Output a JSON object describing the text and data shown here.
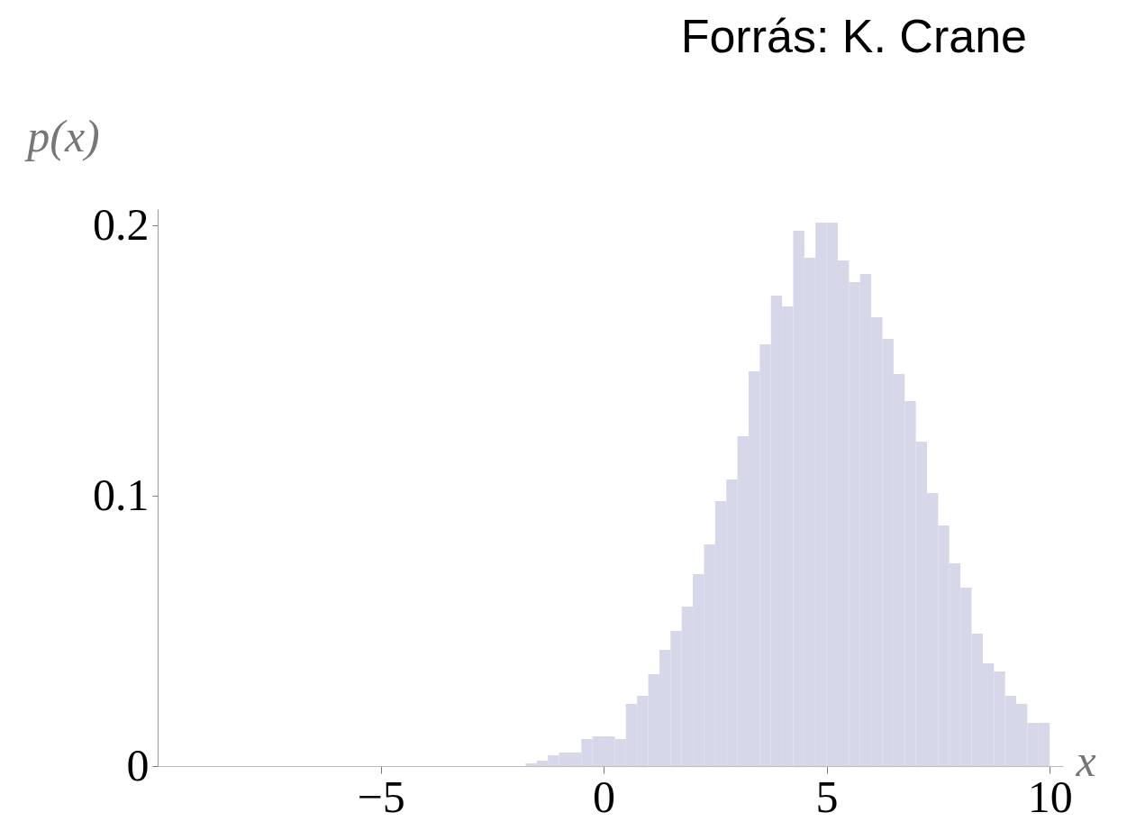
{
  "chart_data": {
    "type": "histogram",
    "xlabel": "x",
    "ylabel": "p(x)",
    "annotations": [
      "Forrás: K. Crane"
    ],
    "bins": [
      -1.75,
      -1.5,
      -1.25,
      -1,
      -0.75,
      -0.5,
      -0.25,
      0,
      0.25,
      0.5,
      0.75,
      1,
      1.25,
      1.5,
      1.75,
      2,
      2.25,
      2.5,
      2.75,
      3,
      3.25,
      3.5,
      3.75,
      4,
      4.25,
      4.5,
      4.75,
      5,
      5.25,
      5.5,
      5.75,
      6,
      6.25,
      6.5,
      6.75,
      7,
      7.25,
      7.5,
      7.75,
      8,
      8.25,
      8.5,
      8.75,
      9,
      9.25,
      9.5,
      9.75,
      10
    ],
    "values": [
      0.001,
      0.002,
      0.004,
      0.005,
      0.005,
      0.01,
      0.011,
      0.011,
      0.01,
      0.023,
      0.026,
      0.034,
      0.043,
      0.05,
      0.059,
      0.071,
      0.082,
      0.098,
      0.106,
      0.122,
      0.146,
      0.156,
      0.174,
      0.17,
      0.198,
      0.188,
      0.201,
      0.201,
      0.187,
      0.179,
      0.182,
      0.166,
      0.158,
      0.145,
      0.135,
      0.12,
      0.101,
      0.089,
      0.075,
      0.066,
      0.049,
      0.038,
      0.035,
      0.026,
      0.023,
      0.016,
      0.016
    ],
    "color": "#d6d7e8",
    "xlim": [
      -10,
      10.3
    ],
    "xticks": [
      -5,
      0,
      5,
      10
    ],
    "ylim": [
      0,
      0.206
    ],
    "yticks": [
      0,
      0.1,
      0.2
    ],
    "grid": false
  }
}
